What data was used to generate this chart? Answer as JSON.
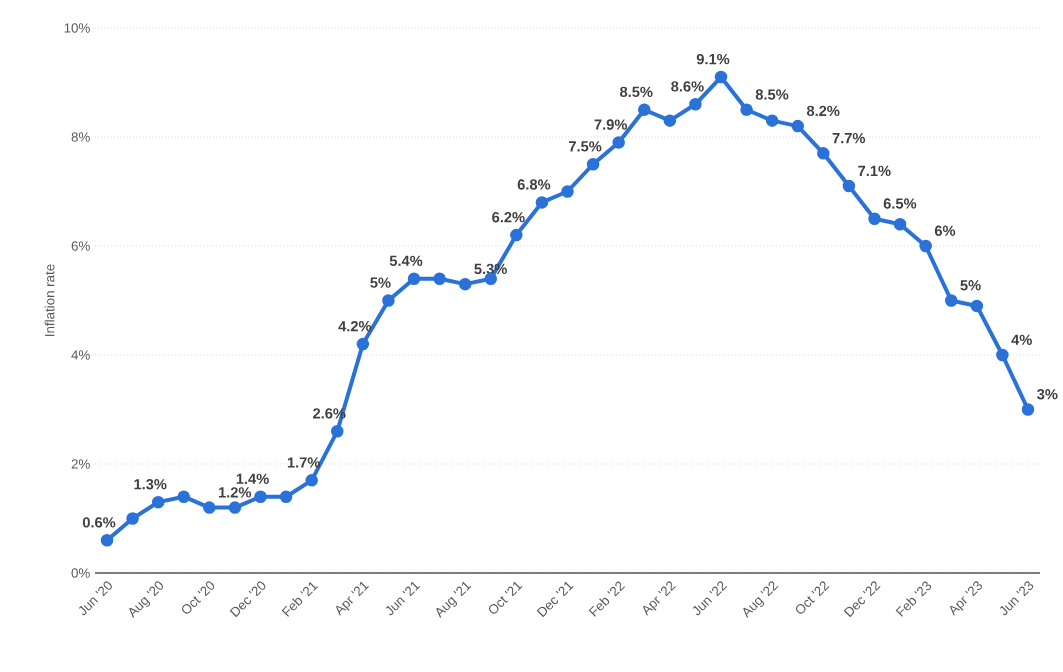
{
  "chart_data": {
    "type": "line",
    "ylabel": "Inflation rate",
    "categories": [
      "Jun '20",
      null,
      "Aug '20",
      null,
      "Oct '20",
      null,
      "Dec '20",
      null,
      "Feb '21",
      null,
      "Apr '21",
      null,
      "Jun '21",
      null,
      "Aug '21",
      null,
      "Oct '21",
      null,
      "Dec '21",
      null,
      "Feb '22",
      null,
      "Apr '22",
      null,
      "Jun '22",
      null,
      "Aug '22",
      null,
      "Oct '22",
      null,
      "Dec '22",
      null,
      "Feb '23",
      null,
      "Apr '23",
      null,
      "Jun '23"
    ],
    "series": [
      {
        "color": "#2b72d8",
        "values": [
          0.6,
          1.0,
          1.3,
          1.4,
          1.2,
          1.2,
          1.4,
          1.4,
          1.7,
          2.6,
          4.2,
          5,
          5.4,
          5.4,
          5.3,
          5.4,
          6.2,
          6.8,
          7.0,
          7.5,
          7.9,
          8.5,
          8.3,
          8.6,
          9.1,
          8.5,
          8.3,
          8.2,
          7.7,
          7.1,
          6.5,
          6.4,
          6,
          5,
          4.9,
          4,
          3
        ],
        "value_labels": [
          "0.6%",
          null,
          "1.3%",
          null,
          "1.2%",
          null,
          "1.4%",
          null,
          "1.7%",
          "2.6%",
          "4.2%",
          "5%",
          "5.4%",
          null,
          "5.3%",
          null,
          "6.2%",
          "6.8%",
          null,
          "7.5%",
          "7.9%",
          "8.5%",
          null,
          "8.6%",
          "9.1%",
          "8.5%",
          null,
          "8.2%",
          "7.7%",
          "7.1%",
          "6.5%",
          null,
          "6%",
          "5%",
          null,
          "4%",
          "3%"
        ]
      }
    ],
    "ylim": [
      0,
      10
    ],
    "yticks": [
      {
        "value": 0,
        "label": "0%"
      },
      {
        "value": 2,
        "label": "2%"
      },
      {
        "value": 4,
        "label": "4%"
      },
      {
        "value": 6,
        "label": "6%"
      },
      {
        "value": 8,
        "label": "8%"
      },
      {
        "value": 10,
        "label": "10%"
      }
    ],
    "grid": "y",
    "marker": "circle",
    "line_style": "solid"
  }
}
